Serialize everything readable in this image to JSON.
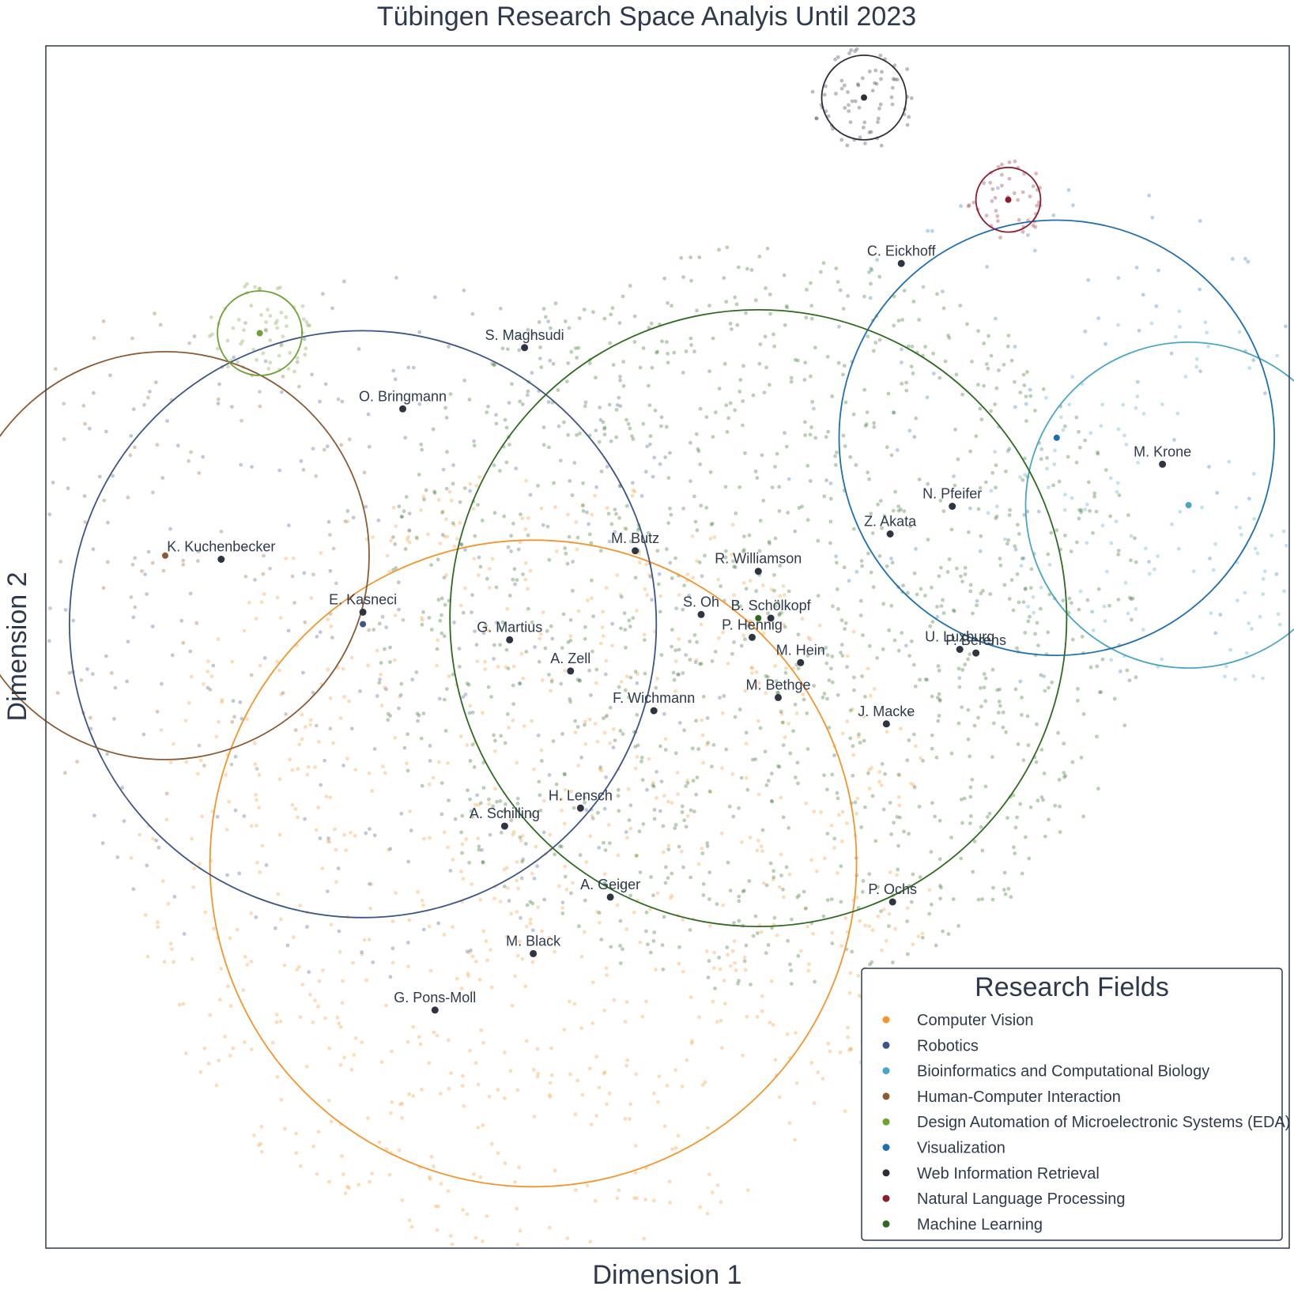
{
  "chart_data": {
    "type": "scatter",
    "title": "Tübingen Research Space Analyis Until 2023",
    "xlabel": "Dimension 1",
    "ylabel": "Dimension 2",
    "xlim": [
      0,
      100
    ],
    "ylim": [
      0,
      100
    ],
    "grid": false,
    "show_ticks": false,
    "legend": {
      "title": "Research Fields",
      "placement": "bottom-right",
      "entries": [
        {
          "key": "cv",
          "label": "Computer Vision",
          "color": "#f4952c"
        },
        {
          "key": "rob",
          "label": "Robotics",
          "color": "#3c5488"
        },
        {
          "key": "bio",
          "label": "Bioinformatics and Computational Biology",
          "color": "#4aa6c5"
        },
        {
          "key": "hci",
          "label": "Human-Computer Interaction",
          "color": "#8c5a34"
        },
        {
          "key": "eda",
          "label": "Design Automation of Microelectronic Systems (EDA)",
          "color": "#6fa034"
        },
        {
          "key": "vis",
          "label": "Visualization",
          "color": "#1f6fb0"
        },
        {
          "key": "wir",
          "label": "Web Information Retrieval",
          "color": "#2c2f38"
        },
        {
          "key": "nlp",
          "label": "Natural Language Processing",
          "color": "#8b1f2e"
        },
        {
          "key": "ml",
          "label": "Machine Learning",
          "color": "#2d6a1e"
        }
      ]
    },
    "field_regions": [
      {
        "field": "cv",
        "cx": 39.2,
        "cy": 32.0,
        "r": 26.0
      },
      {
        "field": "rob",
        "cx": 25.5,
        "cy": 51.9,
        "r": 23.6
      },
      {
        "field": "bio",
        "cx": 91.9,
        "cy": 61.8,
        "r": 13.1
      },
      {
        "field": "hci",
        "cx": 9.6,
        "cy": 57.6,
        "r": 16.4
      },
      {
        "field": "eda",
        "cx": 17.2,
        "cy": 76.1,
        "r": 3.4
      },
      {
        "field": "vis",
        "cx": 81.3,
        "cy": 67.4,
        "r": 17.5
      },
      {
        "field": "wir",
        "cx": 65.8,
        "cy": 95.7,
        "r": 3.4
      },
      {
        "field": "nlp",
        "cx": 77.4,
        "cy": 87.2,
        "r": 2.6
      },
      {
        "field": "ml",
        "cx": 57.3,
        "cy": 52.4,
        "r": 24.8
      }
    ],
    "researchers": [
      {
        "name": "C. Eickhoff",
        "x": 68.8,
        "y": 81.9
      },
      {
        "name": "S. Maghsudi",
        "x": 38.5,
        "y": 74.9
      },
      {
        "name": "O. Bringmann",
        "x": 28.7,
        "y": 69.8
      },
      {
        "name": "M. Krone",
        "x": 89.8,
        "y": 65.2
      },
      {
        "name": "N. Pfeifer",
        "x": 72.9,
        "y": 61.7
      },
      {
        "name": "Z. Akata",
        "x": 67.9,
        "y": 59.4
      },
      {
        "name": "M. Butz",
        "x": 47.4,
        "y": 58.0
      },
      {
        "name": "K. Kuchenbecker",
        "x": 14.1,
        "y": 57.3
      },
      {
        "name": "R. Williamson",
        "x": 57.3,
        "y": 56.3
      },
      {
        "name": "E. Kasneci",
        "x": 25.5,
        "y": 52.9
      },
      {
        "name": "S. Oh",
        "x": 52.7,
        "y": 52.7
      },
      {
        "name": "B. Schölkopf",
        "x": 58.3,
        "y": 52.4
      },
      {
        "name": "P. Hennig",
        "x": 56.8,
        "y": 50.8
      },
      {
        "name": "G. Martius",
        "x": 37.3,
        "y": 50.6
      },
      {
        "name": "U. Luxburg",
        "x": 73.5,
        "y": 49.8
      },
      {
        "name": "P. Berens",
        "x": 74.8,
        "y": 49.5
      },
      {
        "name": "M. Hein",
        "x": 60.7,
        "y": 48.7
      },
      {
        "name": "A. Zell",
        "x": 42.2,
        "y": 48.0
      },
      {
        "name": "M. Bethge",
        "x": 58.9,
        "y": 45.8
      },
      {
        "name": "F. Wichmann",
        "x": 48.9,
        "y": 44.7
      },
      {
        "name": "J. Macke",
        "x": 67.6,
        "y": 43.6
      },
      {
        "name": "H. Lensch",
        "x": 43.0,
        "y": 36.6
      },
      {
        "name": "A. Schilling",
        "x": 36.9,
        "y": 35.1
      },
      {
        "name": "A. Geiger",
        "x": 45.4,
        "y": 29.2
      },
      {
        "name": "P. Ochs",
        "x": 68.1,
        "y": 28.8
      },
      {
        "name": "M. Black",
        "x": 39.2,
        "y": 24.5
      },
      {
        "name": "G. Pons-Moll",
        "x": 31.3,
        "y": 19.8
      }
    ],
    "field_centroids": [
      {
        "field": "hci",
        "x": 9.6,
        "y": 57.6
      },
      {
        "field": "rob",
        "x": 25.5,
        "y": 51.9
      },
      {
        "field": "eda",
        "x": 17.2,
        "y": 76.1
      },
      {
        "field": "wir",
        "x": 65.8,
        "y": 95.7
      },
      {
        "field": "nlp",
        "x": 77.4,
        "y": 87.2
      },
      {
        "field": "vis",
        "x": 81.3,
        "y": 67.4
      },
      {
        "field": "bio",
        "x": 91.9,
        "y": 61.8
      },
      {
        "field": "ml",
        "x": 57.3,
        "y": 52.4
      }
    ]
  }
}
